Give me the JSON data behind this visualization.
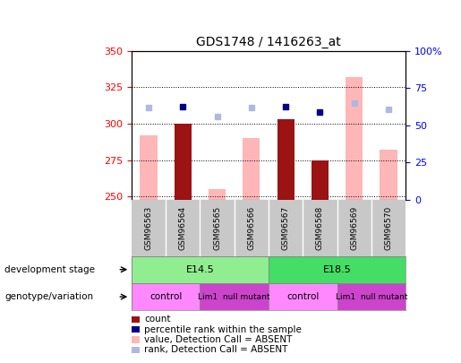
{
  "title": "GDS1748 / 1416263_at",
  "samples": [
    "GSM96563",
    "GSM96564",
    "GSM96565",
    "GSM96566",
    "GSM96567",
    "GSM96568",
    "GSM96569",
    "GSM96570"
  ],
  "count_values": [
    null,
    300,
    null,
    null,
    303,
    275,
    null,
    null
  ],
  "count_absent_values": [
    292,
    null,
    255,
    290,
    null,
    null,
    332,
    282
  ],
  "rank_present": [
    null,
    312,
    null,
    null,
    312,
    308,
    null,
    null
  ],
  "rank_absent": [
    311,
    null,
    305,
    311,
    null,
    null,
    314,
    310
  ],
  "ylim_left": [
    248,
    350
  ],
  "ylim_right": [
    0,
    100
  ],
  "yticks_left": [
    250,
    275,
    300,
    325,
    350
  ],
  "yticks_right": [
    0,
    25,
    50,
    75,
    100
  ],
  "yticklabels_right": [
    "0",
    "25",
    "50",
    "75",
    "100%"
  ],
  "color_count": "#9b1313",
  "color_rank_present": "#00008b",
  "color_value_absent": "#ffb6b6",
  "color_rank_absent": "#b0b8e0",
  "color_e145": "#90ee90",
  "color_e185": "#44dd66",
  "color_control": "#ff88ff",
  "color_mutant": "#cc44cc",
  "color_gray_bg": "#c8c8c8",
  "bar_width": 0.5,
  "marker_size": 5,
  "tick_fontsize": 8,
  "title_fontsize": 10,
  "sample_fontsize": 6.5,
  "annot_fontsize": 8,
  "legend_fontsize": 7.5
}
